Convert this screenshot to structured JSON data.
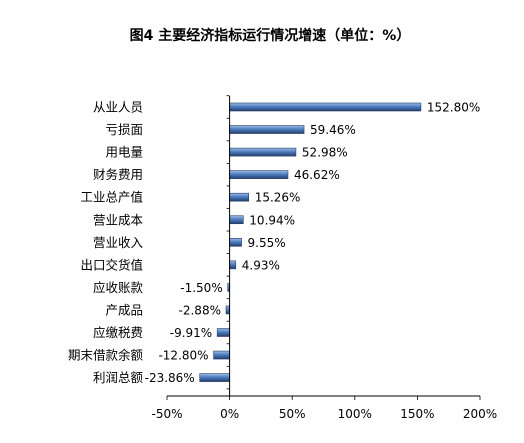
{
  "chart_data": {
    "type": "bar",
    "orientation": "horizontal",
    "title": "图4  主要经济指标运行情况增速（单位：%）",
    "categories": [
      "从业人员",
      "亏损面",
      "用电量",
      "财务费用",
      "工业总产值",
      "营业成本",
      "营业收入",
      "出口交货值",
      "应收账款",
      "产成品",
      "应缴税费",
      "期末借款余额",
      "利润总额"
    ],
    "values": [
      152.8,
      59.46,
      52.98,
      46.62,
      15.26,
      10.94,
      9.55,
      4.93,
      -1.5,
      -2.88,
      -9.91,
      -12.8,
      -23.86
    ],
    "data_labels": [
      "152.80%",
      "59.46%",
      "52.98%",
      "46.62%",
      "15.26%",
      "10.94%",
      "9.55%",
      "4.93%",
      "-1.50%",
      "-2.88%",
      "-9.91%",
      "-12.80%",
      "-23.86%"
    ],
    "xlim": [
      -50,
      200
    ],
    "xticks": [
      -50,
      0,
      50,
      100,
      150,
      200
    ],
    "xtick_labels": [
      "-50%",
      "0%",
      "50%",
      "100%",
      "150%",
      "200%"
    ],
    "xlabel": "",
    "ylabel": "",
    "grid": false,
    "legend": "none",
    "colors": {
      "bar_dark": "#243F6B",
      "bar_mid": "#4F7EC0",
      "bar_light": "#9DBCE6",
      "axis": "#000000"
    }
  }
}
